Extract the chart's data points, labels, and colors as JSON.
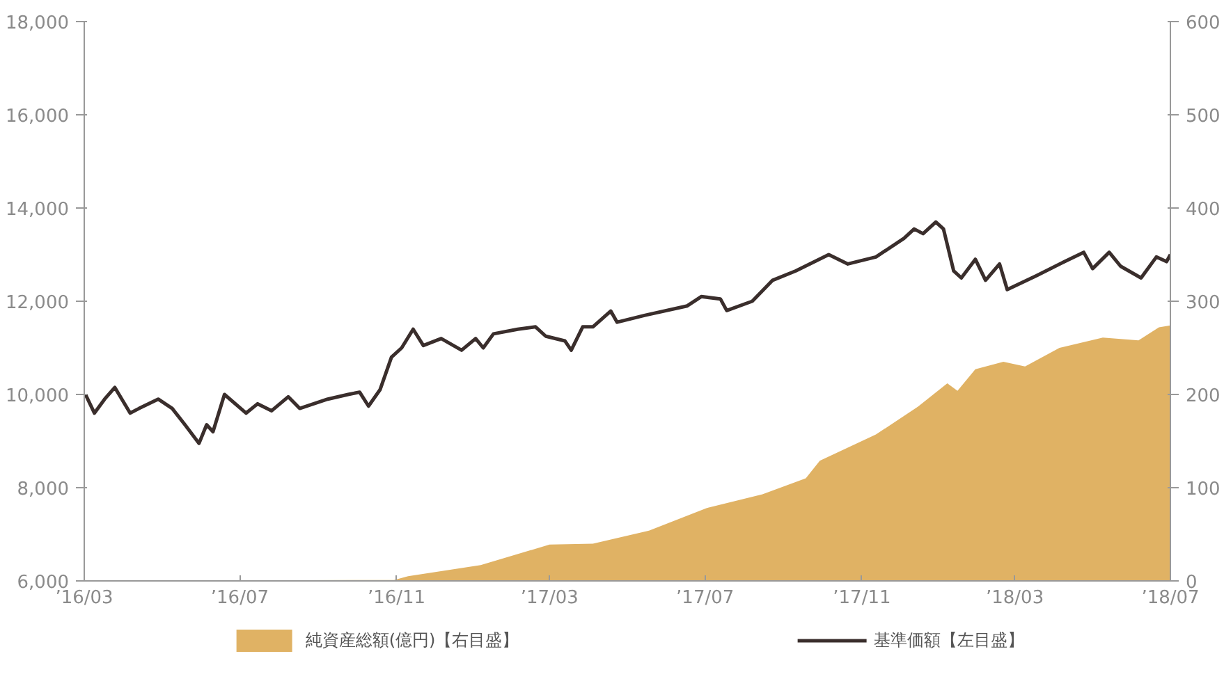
{
  "chart_data": {
    "type": "line",
    "legend": "bottom",
    "grid": false,
    "xlim": [
      "2016-03-01",
      "2018-07-01"
    ],
    "xticks": [
      {
        "value": "2016-03",
        "label": "’16/03"
      },
      {
        "value": "2016-07",
        "label": "’16/07"
      },
      {
        "value": "2016-11",
        "label": "’16/11"
      },
      {
        "value": "2017-03",
        "label": "’17/03"
      },
      {
        "value": "2017-07",
        "label": "’17/07"
      },
      {
        "value": "2017-11",
        "label": "’17/11"
      },
      {
        "value": "2018-03",
        "label": "’18/03"
      },
      {
        "value": "2018-07",
        "label": "’18/07"
      }
    ],
    "ylim": [
      6000,
      18000
    ],
    "yticks": [
      {
        "value": 6000,
        "label": "6,000"
      },
      {
        "value": 8000,
        "label": "8,000"
      },
      {
        "value": 10000,
        "label": "10,000"
      },
      {
        "value": 12000,
        "label": "12,000"
      },
      {
        "value": 14000,
        "label": "14,000"
      },
      {
        "value": 16000,
        "label": "16,000"
      },
      {
        "value": 18000,
        "label": "18,000"
      }
    ],
    "y2lim": [
      0,
      600
    ],
    "y2ticks": [
      0,
      100,
      200,
      300,
      400,
      500,
      600
    ],
    "series": [
      {
        "name": "純資産総額(億円)【右目盛】",
        "type": "area",
        "axis": "y2",
        "color": "#e0b264",
        "x": [
          "2016-03-01",
          "2016-10-30",
          "2016-11-10",
          "2017-01-06",
          "2017-03-01",
          "2017-04-04",
          "2017-05-18",
          "2017-07-02",
          "2017-08-15",
          "2017-09-18",
          "2017-09-29",
          "2017-11-12",
          "2017-12-15",
          "2018-01-07",
          "2018-01-15",
          "2018-01-29",
          "2018-02-20",
          "2018-03-09",
          "2018-04-05",
          "2018-05-09",
          "2018-06-06",
          "2018-06-22",
          "2018-07-01"
        ],
        "values": [
          0,
          1,
          5,
          17,
          39,
          40,
          54,
          78,
          93,
          110,
          129,
          157,
          187,
          212,
          204,
          227,
          235,
          230,
          250,
          261,
          258,
          272,
          274
        ]
      },
      {
        "name": "基準価額【左目盛】",
        "type": "line",
        "color": "#3a2e2c",
        "x": [
          "2016-03-02",
          "2016-03-09",
          "2016-03-17",
          "2016-03-25",
          "2016-04-06",
          "2016-04-13",
          "2016-04-28",
          "2016-05-09",
          "2016-05-19",
          "2016-05-30",
          "2016-06-05",
          "2016-06-10",
          "2016-06-19",
          "2016-07-06",
          "2016-07-15",
          "2016-07-26",
          "2016-08-08",
          "2016-08-17",
          "2016-09-08",
          "2016-09-24",
          "2016-10-03",
          "2016-10-10",
          "2016-10-19",
          "2016-10-28",
          "2016-11-05",
          "2016-11-14",
          "2016-11-22",
          "2016-12-06",
          "2016-12-22",
          "2017-01-02",
          "2017-01-08",
          "2017-01-16",
          "2017-02-04",
          "2017-02-18",
          "2017-02-26",
          "2017-03-13",
          "2017-03-18",
          "2017-03-27",
          "2017-04-04",
          "2017-04-18",
          "2017-04-23",
          "2017-05-15",
          "2017-06-17",
          "2017-06-28",
          "2017-07-13",
          "2017-07-18",
          "2017-08-07",
          "2017-08-23",
          "2017-09-10",
          "2017-10-06",
          "2017-10-21",
          "2017-11-12",
          "2017-12-04",
          "2017-12-12",
          "2017-12-19",
          "2017-12-29",
          "2018-01-04",
          "2018-01-12",
          "2018-01-18",
          "2018-01-29",
          "2018-02-06",
          "2018-02-17",
          "2018-02-23",
          "2018-03-18",
          "2018-04-09",
          "2018-04-24",
          "2018-05-01",
          "2018-05-14",
          "2018-05-23",
          "2018-06-08",
          "2018-06-20",
          "2018-06-28",
          "2018-07-01"
        ],
        "values": [
          10000,
          9600,
          9900,
          10150,
          9600,
          9700,
          9900,
          9700,
          9350,
          8950,
          9350,
          9200,
          10000,
          9600,
          9800,
          9650,
          9950,
          9700,
          9900,
          10000,
          10050,
          9750,
          10100,
          10800,
          11000,
          11400,
          11050,
          11200,
          10950,
          11200,
          11000,
          11300,
          11400,
          11450,
          11250,
          11150,
          10950,
          11450,
          11450,
          11790,
          11550,
          11700,
          11900,
          12100,
          12050,
          11800,
          12000,
          12450,
          12650,
          13000,
          12800,
          12950,
          13350,
          13550,
          13450,
          13700,
          13550,
          12650,
          12500,
          12900,
          12450,
          12800,
          12250,
          12550,
          12850,
          13050,
          12700,
          13050,
          12750,
          12500,
          12950,
          12850,
          13000
        ]
      }
    ]
  }
}
